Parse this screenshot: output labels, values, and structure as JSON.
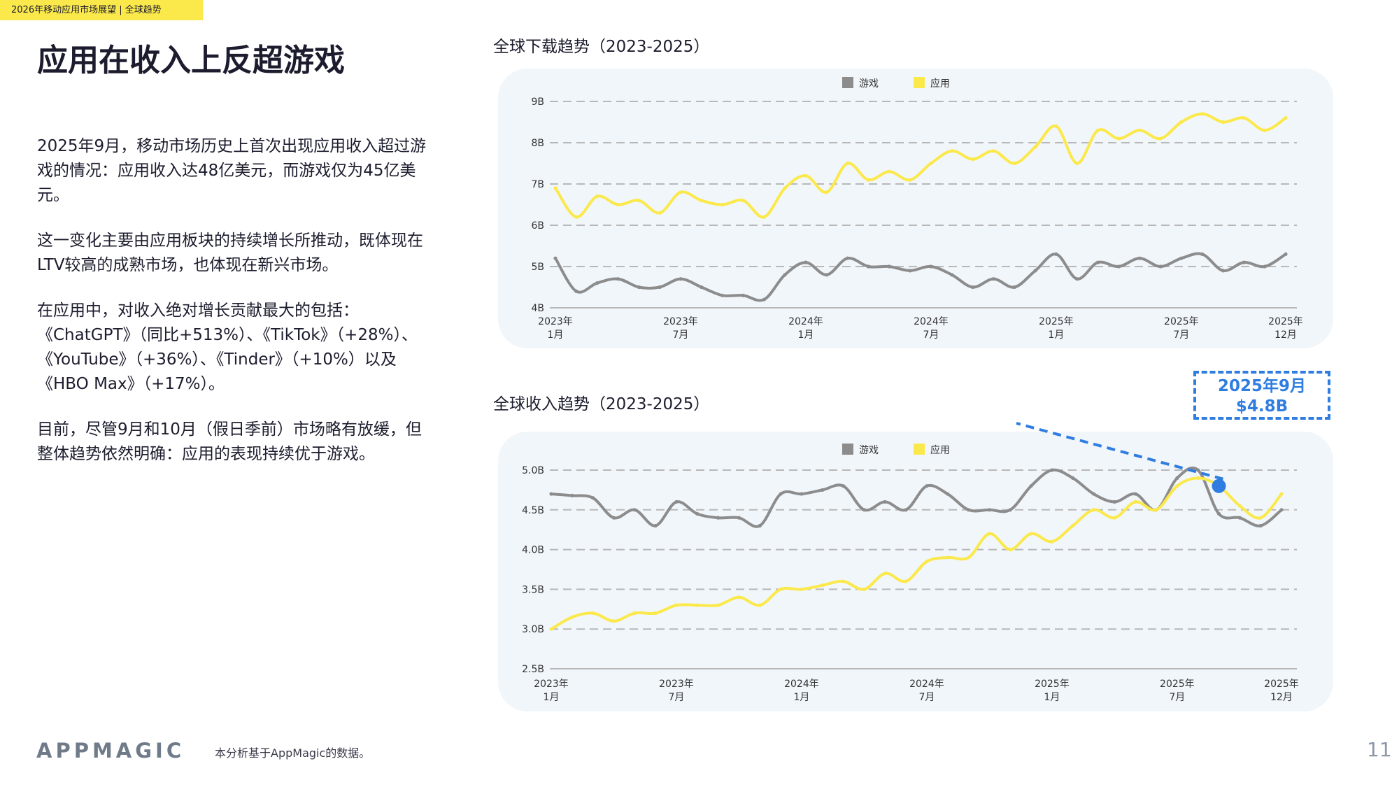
{
  "header": {
    "tag": "2026年移动应用市场展望 | 全球趋势"
  },
  "title": "应用在收入上反超游戏",
  "body": {
    "paragraphs": [
      "2025年9月，移动市场历史上首次出现应用收入超过游戏的情况：应用收入达48亿美元，而游戏仅为45亿美元。",
      "这一变化主要由应用板块的持续增长所推动，既体现在LTV较高的成熟市场，也体现在新兴市场。",
      "在应用中，对收入绝对增长贡献最大的包括：《ChatGPT》（同比+513%）、《TikTok》（+28%）、《YouTube》（+36%）、《Tinder》（+10%）以及《HBO Max》（+17%）。",
      "目前，尽管9月和10月（假日季前）市场略有放缓，但整体趋势依然明确：应用的表现持续优于游戏。"
    ]
  },
  "colors": {
    "games": "#8c8c8c",
    "apps": "#fbe94b",
    "callout": "#2f7de0",
    "header_bg": "#fbe94b",
    "panel_bg": "#f1f6fb"
  },
  "chart_data": [
    {
      "type": "line",
      "title": "全球下载趋势（2023-2025）",
      "legend_position": "top-center",
      "grid": true,
      "xlabel": "",
      "ylabel": "",
      "ylim": [
        4,
        9
      ],
      "y_ticks": [
        "4B",
        "5B",
        "6B",
        "7B",
        "8B",
        "9B"
      ],
      "y_tick_values": [
        4,
        5,
        6,
        7,
        8,
        9
      ],
      "x_ticks": [
        {
          "label_top": "2023年",
          "label_bottom": "1月",
          "index": 0
        },
        {
          "label_top": "2023年",
          "label_bottom": "7月",
          "index": 6
        },
        {
          "label_top": "2024年",
          "label_bottom": "1月",
          "index": 12
        },
        {
          "label_top": "2024年",
          "label_bottom": "7月",
          "index": 18
        },
        {
          "label_top": "2025年",
          "label_bottom": "1月",
          "index": 24
        },
        {
          "label_top": "2025年",
          "label_bottom": "7月",
          "index": 30
        },
        {
          "label_top": "2025年",
          "label_bottom": "12月",
          "index": 35
        }
      ],
      "x": [
        "2023-01",
        "2023-02",
        "2023-03",
        "2023-04",
        "2023-05",
        "2023-06",
        "2023-07",
        "2023-08",
        "2023-09",
        "2023-10",
        "2023-11",
        "2023-12",
        "2024-01",
        "2024-02",
        "2024-03",
        "2024-04",
        "2024-05",
        "2024-06",
        "2024-07",
        "2024-08",
        "2024-09",
        "2024-10",
        "2024-11",
        "2024-12",
        "2025-01",
        "2025-02",
        "2025-03",
        "2025-04",
        "2025-05",
        "2025-06",
        "2025-07",
        "2025-08",
        "2025-09",
        "2025-10",
        "2025-11",
        "2025-12"
      ],
      "series": [
        {
          "name": "游戏",
          "color": "#8c8c8c",
          "values": [
            5.2,
            4.4,
            4.6,
            4.7,
            4.5,
            4.5,
            4.7,
            4.5,
            4.3,
            4.3,
            4.2,
            4.8,
            5.1,
            4.8,
            5.2,
            5.0,
            5.0,
            4.9,
            5.0,
            4.8,
            4.5,
            4.7,
            4.5,
            4.9,
            5.3,
            4.7,
            5.1,
            5.0,
            5.2,
            5.0,
            5.2,
            5.3,
            4.9,
            5.1,
            5.0,
            5.3
          ]
        },
        {
          "name": "应用",
          "color": "#fbe94b",
          "values": [
            6.9,
            6.2,
            6.7,
            6.5,
            6.6,
            6.3,
            6.8,
            6.6,
            6.5,
            6.6,
            6.2,
            6.9,
            7.2,
            6.8,
            7.5,
            7.1,
            7.3,
            7.1,
            7.5,
            7.8,
            7.6,
            7.8,
            7.5,
            7.9,
            8.4,
            7.5,
            8.3,
            8.1,
            8.3,
            8.1,
            8.5,
            8.7,
            8.5,
            8.6,
            8.3,
            8.6
          ]
        }
      ]
    },
    {
      "type": "line",
      "title": "全球收入趋势（2023-2025）",
      "legend_position": "top-center",
      "grid": true,
      "xlabel": "",
      "ylabel": "",
      "ylim": [
        2.5,
        5.0
      ],
      "y_ticks": [
        "2.5B",
        "3.0B",
        "3.5B",
        "4.0B",
        "4.5B",
        "5.0B"
      ],
      "y_tick_values": [
        2.5,
        3.0,
        3.5,
        4.0,
        4.5,
        5.0
      ],
      "x_ticks": [
        {
          "label_top": "2023年",
          "label_bottom": "1月",
          "index": 0
        },
        {
          "label_top": "2023年",
          "label_bottom": "7月",
          "index": 6
        },
        {
          "label_top": "2024年",
          "label_bottom": "1月",
          "index": 12
        },
        {
          "label_top": "2024年",
          "label_bottom": "7月",
          "index": 18
        },
        {
          "label_top": "2025年",
          "label_bottom": "1月",
          "index": 24
        },
        {
          "label_top": "2025年",
          "label_bottom": "7月",
          "index": 30
        },
        {
          "label_top": "2025年",
          "label_bottom": "12月",
          "index": 35
        }
      ],
      "x": [
        "2023-01",
        "2023-02",
        "2023-03",
        "2023-04",
        "2023-05",
        "2023-06",
        "2023-07",
        "2023-08",
        "2023-09",
        "2023-10",
        "2023-11",
        "2023-12",
        "2024-01",
        "2024-02",
        "2024-03",
        "2024-04",
        "2024-05",
        "2024-06",
        "2024-07",
        "2024-08",
        "2024-09",
        "2024-10",
        "2024-11",
        "2024-12",
        "2025-01",
        "2025-02",
        "2025-03",
        "2025-04",
        "2025-05",
        "2025-06",
        "2025-07",
        "2025-08",
        "2025-09",
        "2025-10",
        "2025-11",
        "2025-12"
      ],
      "series": [
        {
          "name": "游戏",
          "color": "#8c8c8c",
          "values": [
            4.7,
            4.68,
            4.65,
            4.4,
            4.5,
            4.3,
            4.6,
            4.45,
            4.4,
            4.4,
            4.3,
            4.7,
            4.7,
            4.75,
            4.8,
            4.5,
            4.6,
            4.5,
            4.8,
            4.7,
            4.5,
            4.5,
            4.5,
            4.8,
            5.0,
            4.9,
            4.7,
            4.6,
            4.7,
            4.5,
            4.9,
            5.0,
            4.45,
            4.4,
            4.3,
            4.5
          ]
        },
        {
          "name": "应用",
          "color": "#fbe94b",
          "values": [
            3.0,
            3.15,
            3.2,
            3.1,
            3.2,
            3.2,
            3.3,
            3.3,
            3.3,
            3.4,
            3.3,
            3.5,
            3.5,
            3.55,
            3.6,
            3.5,
            3.7,
            3.6,
            3.85,
            3.9,
            3.9,
            4.2,
            4.0,
            4.2,
            4.1,
            4.3,
            4.5,
            4.4,
            4.6,
            4.5,
            4.8,
            4.9,
            4.8,
            4.55,
            4.4,
            4.7
          ]
        }
      ],
      "highlight": {
        "index": 32,
        "value": 4.8,
        "label_line1": "2025年9月",
        "label_line2": "$4.8B"
      }
    }
  ],
  "footer": {
    "logo": "APPMAGIC",
    "note": "本分析基于AppMagic的数据。",
    "page_number": "11"
  }
}
